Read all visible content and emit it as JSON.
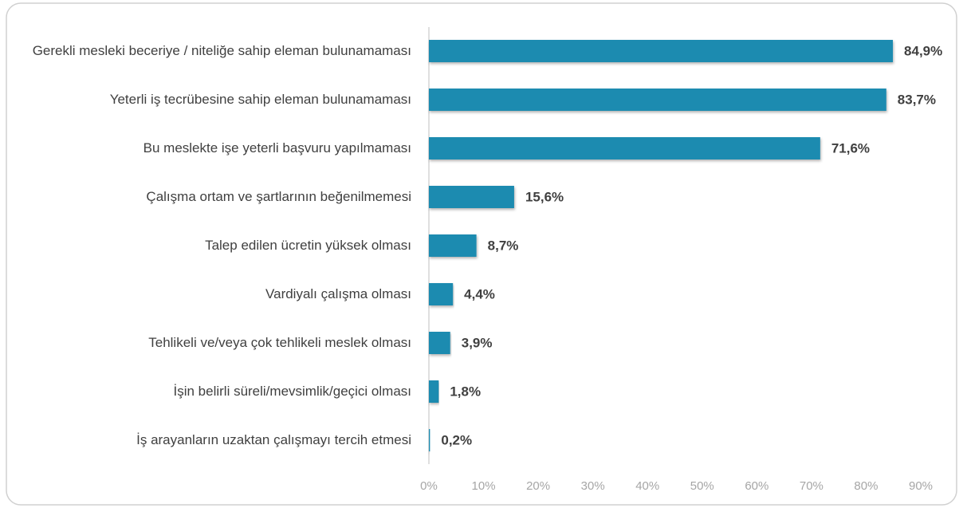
{
  "chart_data": {
    "type": "barh",
    "categories": [
      "Gerekli mesleki beceriye / niteliğe sahip eleman bulunamaması",
      "Yeterli iş tecrübesine sahip eleman bulunamaması",
      "Bu meslekte işe yeterli başvuru yapılmaması",
      "Çalışma ortam ve şartlarının beğenilmemesi",
      "Talep edilen ücretin yüksek olması",
      "Vardiyalı çalışma olması",
      "Tehlikeli ve/veya çok tehlikeli meslek olması",
      "İşin belirli süreli/mevsimlik/geçici olması",
      "İş arayanların uzaktan çalışmayı tercih etmesi"
    ],
    "values": [
      84.9,
      83.7,
      71.6,
      15.6,
      8.7,
      4.4,
      3.9,
      1.8,
      0.2
    ],
    "value_labels": [
      "84,9%",
      "83,7%",
      "71,6%",
      "15,6%",
      "8,7%",
      "4,4%",
      "3,9%",
      "1,8%",
      "0,2%"
    ],
    "color": "#1e8bb0",
    "xlim": [
      0,
      90
    ],
    "xticks": [
      {
        "value": 0,
        "label": "0%"
      },
      {
        "value": 10,
        "label": "10%"
      },
      {
        "value": 20,
        "label": "20%"
      },
      {
        "value": 30,
        "label": "30%"
      },
      {
        "value": 40,
        "label": "40%"
      },
      {
        "value": 50,
        "label": "50%"
      },
      {
        "value": 60,
        "label": "60%"
      },
      {
        "value": 70,
        "label": "70%"
      },
      {
        "value": 80,
        "label": "80%"
      },
      {
        "value": 90,
        "label": "90%"
      }
    ],
    "grid": false
  }
}
